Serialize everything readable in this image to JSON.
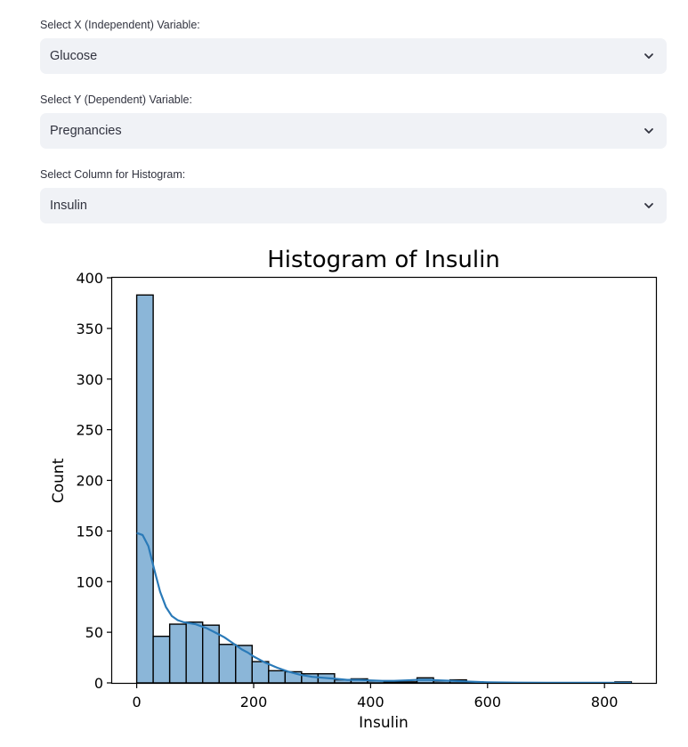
{
  "controls": [
    {
      "label": "Select X (Independent) Variable:",
      "value": "Glucose"
    },
    {
      "label": "Select Y (Dependent) Variable:",
      "value": "Pregnancies"
    },
    {
      "label": "Select Column for Histogram:",
      "value": "Insulin"
    }
  ],
  "chart_data": {
    "type": "bar",
    "title": "Histogram of Insulin",
    "xlabel": "Insulin",
    "ylabel": "Count",
    "xlim": [
      -42,
      888
    ],
    "ylim": [
      0,
      400
    ],
    "xticks": [
      0,
      200,
      400,
      600,
      800
    ],
    "yticks": [
      0,
      50,
      100,
      150,
      200,
      250,
      300,
      350,
      400
    ],
    "bin_edges": [
      0,
      28.2,
      56.4,
      84.6,
      112.8,
      141,
      169.2,
      197.4,
      225.6,
      253.8,
      282,
      310.2,
      338.4,
      366.6,
      394.8,
      423,
      451.2,
      479.4,
      507.6,
      535.8,
      564,
      592.2,
      620.4,
      648.6,
      676.8,
      705,
      733.2,
      761.4,
      789.6,
      817.8,
      846
    ],
    "counts": [
      383,
      46,
      58,
      60,
      57,
      38,
      37,
      21,
      12,
      11,
      9,
      9,
      3,
      4,
      2,
      1,
      1,
      5,
      2,
      3,
      1,
      0,
      0,
      0,
      0,
      0,
      0,
      0,
      0,
      1
    ],
    "bar_color": "#8bb6d8",
    "kde_color": "#2a7ab8",
    "kde": {
      "x": [
        0,
        10,
        20,
        30,
        40,
        50,
        60,
        70,
        80,
        90,
        100,
        110,
        120,
        130,
        140,
        150,
        160,
        170,
        180,
        190,
        200,
        220,
        240,
        260,
        280,
        300,
        320,
        340,
        360,
        380,
        400,
        420,
        440,
        460,
        480,
        500,
        520,
        540,
        560,
        580,
        600,
        650,
        700,
        750,
        800,
        846
      ],
      "y": [
        148,
        146,
        135,
        112,
        90,
        75,
        66,
        62,
        60,
        59,
        58,
        56,
        54,
        51,
        48,
        45,
        41,
        37,
        33,
        30,
        26,
        20,
        15,
        11,
        8,
        6,
        5,
        4,
        3,
        3,
        2.5,
        2,
        2,
        2.5,
        3,
        3,
        2.5,
        2,
        1.5,
        1,
        0.6,
        0.3,
        0.2,
        0.1,
        0.1,
        0.1
      ]
    }
  }
}
